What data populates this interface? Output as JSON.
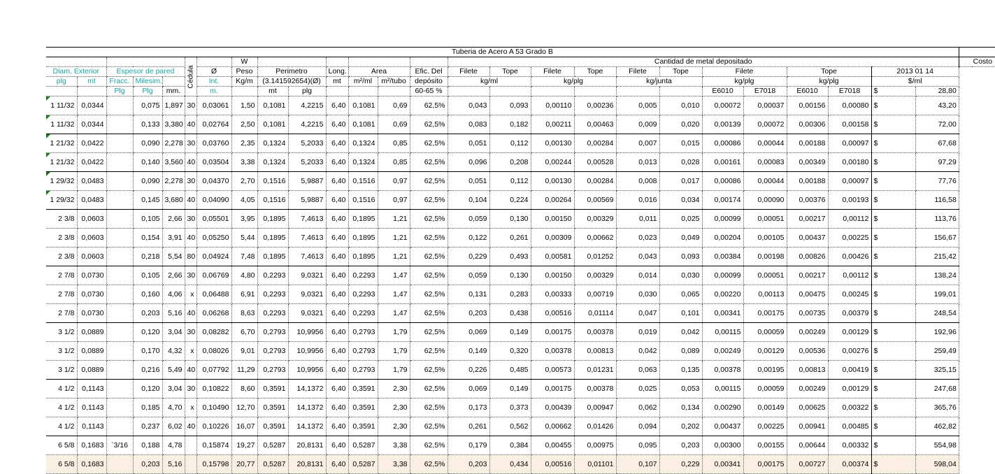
{
  "title": "Tuberia de Acero A 53 Grado B",
  "headers": {
    "row1": {
      "w": "W",
      "cantidad": "Cantidad de metal depositado",
      "costo": "Costo"
    },
    "row2": {
      "diam": "Diam. Exterior",
      "espesor": "Espesor de pared",
      "cedula": "Cédula",
      "diam_int": "Ø",
      "peso": "Peso",
      "perimetro": "Perimetro",
      "long": "Long.",
      "area": "Area",
      "efic": "Efic. Del",
      "filete1": "Filete",
      "tope1": "Tope",
      "filete2": "Filete",
      "tope2": "Tope",
      "filete3": "Filete",
      "tope3": "Tope",
      "filete4": "Filete",
      "tope4": "Tope",
      "fecha": "2013 01 14"
    },
    "row3": {
      "plg": "plg",
      "mt": "mt",
      "fracc": "Fracc.",
      "milesim": "Milesim.",
      "int": "Int.",
      "kgm": "Kg/m",
      "perim_formula": "(3.141592654)(Ø)",
      "long_unit": "mt",
      "area_m2ml": "m²/ml",
      "area_m2tubo": "m²/tubo",
      "deposito": "depósito",
      "kgml": "kg/ml",
      "kgplg1": "kg/plg",
      "kgjunta": "kg/junta",
      "kgplg2": "kg/plg",
      "kgplg3": "kg/plg",
      "sml": "$/ml"
    },
    "row4": {
      "plg": "Plg",
      "plg2": "Plg",
      "mm": "mm.",
      "m": "m.",
      "perim_mt": "mt",
      "perim_plg": "plg",
      "efic_range": "60-65 %",
      "e6010a": "E6010",
      "e7018a": "E7018",
      "e6010b": "E6010",
      "e7018b": "E7018",
      "cur": "$",
      "costo_base": "28,80"
    }
  },
  "rows": [
    {
      "plg": "1 11/32",
      "mt": "0,0344",
      "fracc": "",
      "milesim": "0,075",
      "mm": "1,897",
      "ced": "30",
      "dint": "0,03061",
      "peso": "1,50",
      "pmt": "0,1081",
      "pplg": "4,2215",
      "long": "6,40",
      "m2ml": "0,1081",
      "m2tubo": "0,69",
      "efic": "62,5%",
      "fil_kgml": "0,043",
      "top_kgml": "0,093",
      "fil_kgplg": "0,00110",
      "top_kgplg": "0,00236",
      "fil_junta": "0,005",
      "top_junta": "0,010",
      "f6010": "0,00072",
      "f7018": "0,00037",
      "t6010": "0,00156",
      "t7018": "0,00080",
      "cur": "$",
      "costo": "43,20"
    },
    {
      "plg": "1 11/32",
      "mt": "0,0344",
      "fracc": "",
      "milesim": "0,133",
      "mm": "3,380",
      "ced": "40",
      "dint": "0,02764",
      "peso": "2,50",
      "pmt": "0,1081",
      "pplg": "4,2215",
      "long": "6,40",
      "m2ml": "0,1081",
      "m2tubo": "0,69",
      "efic": "62,5%",
      "fil_kgml": "0,083",
      "top_kgml": "0,182",
      "fil_kgplg": "0,00211",
      "top_kgplg": "0,00463",
      "fil_junta": "0,009",
      "top_junta": "0,020",
      "f6010": "0,00139",
      "f7018": "0,00072",
      "t6010": "0,00306",
      "t7018": "0,00158",
      "cur": "$",
      "costo": "72,00"
    },
    {
      "plg": "1 21/32",
      "mt": "0,0422",
      "fracc": "",
      "milesim": "0,090",
      "mm": "2,278",
      "ced": "30",
      "dint": "0,03760",
      "peso": "2,35",
      "pmt": "0,1324",
      "pplg": "5,2033",
      "long": "6,40",
      "m2ml": "0,1324",
      "m2tubo": "0,85",
      "efic": "62,5%",
      "fil_kgml": "0,051",
      "top_kgml": "0,112",
      "fil_kgplg": "0,00130",
      "top_kgplg": "0,00284",
      "fil_junta": "0,007",
      "top_junta": "0,015",
      "f6010": "0,00086",
      "f7018": "0,00044",
      "t6010": "0,00188",
      "t7018": "0,00097",
      "cur": "$",
      "costo": "67,68"
    },
    {
      "plg": "1 21/32",
      "mt": "0,0422",
      "fracc": "",
      "milesim": "0,140",
      "mm": "3,560",
      "ced": "40",
      "dint": "0,03504",
      "peso": "3,38",
      "pmt": "0,1324",
      "pplg": "5,2033",
      "long": "6,40",
      "m2ml": "0,1324",
      "m2tubo": "0,85",
      "efic": "62,5%",
      "fil_kgml": "0,096",
      "top_kgml": "0,208",
      "fil_kgplg": "0,00244",
      "top_kgplg": "0,00528",
      "fil_junta": "0,013",
      "top_junta": "0,028",
      "f6010": "0,00161",
      "f7018": "0,00083",
      "t6010": "0,00349",
      "t7018": "0,00180",
      "cur": "$",
      "costo": "97,29"
    },
    {
      "plg": "1 29/32",
      "mt": "0,0483",
      "fracc": "",
      "milesim": "0,090",
      "mm": "2,278",
      "ced": "30",
      "dint": "0,04370",
      "peso": "2,70",
      "pmt": "0,1516",
      "pplg": "5,9887",
      "long": "6,40",
      "m2ml": "0,1516",
      "m2tubo": "0,97",
      "efic": "62,5%",
      "fil_kgml": "0,051",
      "top_kgml": "0,112",
      "fil_kgplg": "0,00130",
      "top_kgplg": "0,00284",
      "fil_junta": "0,008",
      "top_junta": "0,017",
      "f6010": "0,00086",
      "f7018": "0,00044",
      "t6010": "0,00188",
      "t7018": "0,00097",
      "cur": "$",
      "costo": "77,76"
    },
    {
      "plg": "1 29/32",
      "mt": "0,0483",
      "fracc": "",
      "milesim": "0,145",
      "mm": "3,680",
      "ced": "40",
      "dint": "0,04090",
      "peso": "4,05",
      "pmt": "0,1516",
      "pplg": "5,9887",
      "long": "6,40",
      "m2ml": "0,1516",
      "m2tubo": "0,97",
      "efic": "62,5%",
      "fil_kgml": "0,104",
      "top_kgml": "0,224",
      "fil_kgplg": "0,00264",
      "top_kgplg": "0,00569",
      "fil_junta": "0,016",
      "top_junta": "0,034",
      "f6010": "0,00174",
      "f7018": "0,00090",
      "t6010": "0,00376",
      "t7018": "0,00193",
      "cur": "$",
      "costo": "116,58"
    },
    {
      "plg": "2 3/8",
      "mt": "0,0603",
      "fracc": "",
      "milesim": "0,105",
      "mm": "2,66",
      "ced": "30",
      "dint": "0,05501",
      "peso": "3,95",
      "pmt": "0,1895",
      "pplg": "7,4613",
      "long": "6,40",
      "m2ml": "0,1895",
      "m2tubo": "1,21",
      "efic": "62,5%",
      "fil_kgml": "0,059",
      "top_kgml": "0,130",
      "fil_kgplg": "0,00150",
      "top_kgplg": "0,00329",
      "fil_junta": "0,011",
      "top_junta": "0,025",
      "f6010": "0,00099",
      "f7018": "0,00051",
      "t6010": "0,00217",
      "t7018": "0,00112",
      "cur": "$",
      "costo": "113,76"
    },
    {
      "plg": "2 3/8",
      "mt": "0,0603",
      "fracc": "",
      "milesim": "0,154",
      "mm": "3,91",
      "ced": "40",
      "dint": "0,05250",
      "peso": "5,44",
      "pmt": "0,1895",
      "pplg": "7,4613",
      "long": "6,40",
      "m2ml": "0,1895",
      "m2tubo": "1,21",
      "efic": "62,5%",
      "fil_kgml": "0,122",
      "top_kgml": "0,261",
      "fil_kgplg": "0,00309",
      "top_kgplg": "0,00662",
      "fil_junta": "0,023",
      "top_junta": "0,049",
      "f6010": "0,00204",
      "f7018": "0,00105",
      "t6010": "0,00437",
      "t7018": "0,00225",
      "cur": "$",
      "costo": "156,67"
    },
    {
      "plg": "2 3/8",
      "mt": "0,0603",
      "fracc": "",
      "milesim": "0,218",
      "mm": "5,54",
      "ced": "80",
      "dint": "0,04924",
      "peso": "7,48",
      "pmt": "0,1895",
      "pplg": "7,4613",
      "long": "6,40",
      "m2ml": "0,1895",
      "m2tubo": "1,21",
      "efic": "62,5%",
      "fil_kgml": "0,229",
      "top_kgml": "0,493",
      "fil_kgplg": "0,00581",
      "top_kgplg": "0,01252",
      "fil_junta": "0,043",
      "top_junta": "0,093",
      "f6010": "0,00384",
      "f7018": "0,00198",
      "t6010": "0,00826",
      "t7018": "0,00426",
      "cur": "$",
      "costo": "215,42"
    },
    {
      "plg": "2 7/8",
      "mt": "0,0730",
      "fracc": "",
      "milesim": "0,105",
      "mm": "2,66",
      "ced": "30",
      "dint": "0,06769",
      "peso": "4,80",
      "pmt": "0,2293",
      "pplg": "9,0321",
      "long": "6,40",
      "m2ml": "0,2293",
      "m2tubo": "1,47",
      "efic": "62,5%",
      "fil_kgml": "0,059",
      "top_kgml": "0,130",
      "fil_kgplg": "0,00150",
      "top_kgplg": "0,00329",
      "fil_junta": "0,014",
      "top_junta": "0,030",
      "f6010": "0,00099",
      "f7018": "0,00051",
      "t6010": "0,00217",
      "t7018": "0,00112",
      "cur": "$",
      "costo": "138,24"
    },
    {
      "plg": "2 7/8",
      "mt": "0,0730",
      "fracc": "",
      "milesim": "0,160",
      "mm": "4,06",
      "ced": "x",
      "dint": "0,06488",
      "peso": "6,91",
      "pmt": "0,2293",
      "pplg": "9,0321",
      "long": "6,40",
      "m2ml": "0,2293",
      "m2tubo": "1,47",
      "efic": "62,5%",
      "fil_kgml": "0,131",
      "top_kgml": "0,283",
      "fil_kgplg": "0,00333",
      "top_kgplg": "0,00719",
      "fil_junta": "0,030",
      "top_junta": "0,065",
      "f6010": "0,00220",
      "f7018": "0,00113",
      "t6010": "0,00475",
      "t7018": "0,00245",
      "cur": "$",
      "costo": "199,01"
    },
    {
      "plg": "2 7/8",
      "mt": "0,0730",
      "fracc": "",
      "milesim": "0,203",
      "mm": "5,16",
      "ced": "40",
      "dint": "0,06268",
      "peso": "8,63",
      "pmt": "0,2293",
      "pplg": "9,0321",
      "long": "6,40",
      "m2ml": "0,2293",
      "m2tubo": "1,47",
      "efic": "62,5%",
      "fil_kgml": "0,203",
      "top_kgml": "0,438",
      "fil_kgplg": "0,00516",
      "top_kgplg": "0,01114",
      "fil_junta": "0,047",
      "top_junta": "0,101",
      "f6010": "0,00341",
      "f7018": "0,00175",
      "t6010": "0,00735",
      "t7018": "0,00379",
      "cur": "$",
      "costo": "248,54"
    },
    {
      "plg": "3 1/2",
      "mt": "0,0889",
      "fracc": "",
      "milesim": "0,120",
      "mm": "3,04",
      "ced": "30",
      "dint": "0,08282",
      "peso": "6,70",
      "pmt": "0,2793",
      "pplg": "10,9956",
      "long": "6,40",
      "m2ml": "0,2793",
      "m2tubo": "1,79",
      "efic": "62,5%",
      "fil_kgml": "0,069",
      "top_kgml": "0,149",
      "fil_kgplg": "0,00175",
      "top_kgplg": "0,00378",
      "fil_junta": "0,019",
      "top_junta": "0,042",
      "f6010": "0,00115",
      "f7018": "0,00059",
      "t6010": "0,00249",
      "t7018": "0,00129",
      "cur": "$",
      "costo": "192,96"
    },
    {
      "plg": "3 1/2",
      "mt": "0,0889",
      "fracc": "",
      "milesim": "0,170",
      "mm": "4,32",
      "ced": "x",
      "dint": "0,08026",
      "peso": "9,01",
      "pmt": "0,2793",
      "pplg": "10,9956",
      "long": "6,40",
      "m2ml": "0,2793",
      "m2tubo": "1,79",
      "efic": "62,5%",
      "fil_kgml": "0,149",
      "top_kgml": "0,320",
      "fil_kgplg": "0,00378",
      "top_kgplg": "0,00813",
      "fil_junta": "0,042",
      "top_junta": "0,089",
      "f6010": "0,00249",
      "f7018": "0,00129",
      "t6010": "0,00536",
      "t7018": "0,00276",
      "cur": "$",
      "costo": "259,49"
    },
    {
      "plg": "3 1/2",
      "mt": "0,0889",
      "fracc": "",
      "milesim": "0,216",
      "mm": "5,49",
      "ced": "40",
      "dint": "0,07792",
      "peso": "11,29",
      "pmt": "0,2793",
      "pplg": "10,9956",
      "long": "6,40",
      "m2ml": "0,2793",
      "m2tubo": "1,79",
      "efic": "62,5%",
      "fil_kgml": "0,226",
      "top_kgml": "0,485",
      "fil_kgplg": "0,00573",
      "top_kgplg": "0,01231",
      "fil_junta": "0,063",
      "top_junta": "0,135",
      "f6010": "0,00378",
      "f7018": "0,00195",
      "t6010": "0,00813",
      "t7018": "0,00419",
      "cur": "$",
      "costo": "325,15"
    },
    {
      "plg": "4 1/2",
      "mt": "0,1143",
      "fracc": "",
      "milesim": "0,120",
      "mm": "3,04",
      "ced": "30",
      "dint": "0,10822",
      "peso": "8,60",
      "pmt": "0,3591",
      "pplg": "14,1372",
      "long": "6,40",
      "m2ml": "0,3591",
      "m2tubo": "2,30",
      "efic": "62,5%",
      "fil_kgml": "0,069",
      "top_kgml": "0,149",
      "fil_kgplg": "0,00175",
      "top_kgplg": "0,00378",
      "fil_junta": "0,025",
      "top_junta": "0,053",
      "f6010": "0,00115",
      "f7018": "0,00059",
      "t6010": "0,00249",
      "t7018": "0,00129",
      "cur": "$",
      "costo": "247,68"
    },
    {
      "plg": "4 1/2",
      "mt": "0,1143",
      "fracc": "",
      "milesim": "0,185",
      "mm": "4,70",
      "ced": "x",
      "dint": "0,10490",
      "peso": "12,70",
      "pmt": "0,3591",
      "pplg": "14,1372",
      "long": "6,40",
      "m2ml": "0,3591",
      "m2tubo": "2,30",
      "efic": "62,5%",
      "fil_kgml": "0,173",
      "top_kgml": "0,373",
      "fil_kgplg": "0,00439",
      "top_kgplg": "0,00947",
      "fil_junta": "0,062",
      "top_junta": "0,134",
      "f6010": "0,00290",
      "f7018": "0,00149",
      "t6010": "0,00625",
      "t7018": "0,00322",
      "cur": "$",
      "costo": "365,76"
    },
    {
      "plg": "4 1/2",
      "mt": "0,1143",
      "fracc": "",
      "milesim": "0,237",
      "mm": "6,02",
      "ced": "40",
      "dint": "0,10226",
      "peso": "16,07",
      "pmt": "0,3591",
      "pplg": "14,1372",
      "long": "6,40",
      "m2ml": "0,3591",
      "m2tubo": "2,30",
      "efic": "62,5%",
      "fil_kgml": "0,261",
      "top_kgml": "0,562",
      "fil_kgplg": "0,00662",
      "top_kgplg": "0,01426",
      "fil_junta": "0,094",
      "top_junta": "0,202",
      "f6010": "0,00437",
      "f7018": "0,00225",
      "t6010": "0,00941",
      "t7018": "0,00485",
      "cur": "$",
      "costo": "462,82"
    },
    {
      "plg": "6 5/8",
      "mt": "0,1683",
      "fracc": "`3/16",
      "milesim": "0,188",
      "mm": "4,78",
      "ced": "",
      "dint": "0,15874",
      "peso": "19,27",
      "pmt": "0,5287",
      "pplg": "20,8131",
      "long": "6,40",
      "m2ml": "0,5287",
      "m2tubo": "3,38",
      "efic": "62,5%",
      "fil_kgml": "0,179",
      "top_kgml": "0,384",
      "fil_kgplg": "0,00455",
      "top_kgplg": "0,00975",
      "fil_junta": "0,095",
      "top_junta": "0,203",
      "f6010": "0,00300",
      "f7018": "0,00155",
      "t6010": "0,00644",
      "t7018": "0,00332",
      "cur": "$",
      "costo": "554,98"
    },
    {
      "plg": "6 5/8",
      "mt": "0,1683",
      "fracc": "",
      "milesim": "0,203",
      "mm": "5,16",
      "ced": "",
      "dint": "0,15798",
      "peso": "20,77",
      "pmt": "0,5287",
      "pplg": "20,8131",
      "long": "6,40",
      "m2ml": "0,5287",
      "m2tubo": "3,38",
      "efic": "62,5%",
      "fil_kgml": "0,203",
      "top_kgml": "0,434",
      "fil_kgplg": "0,00516",
      "top_kgplg": "0,01101",
      "fil_junta": "0,107",
      "top_junta": "0,229",
      "f6010": "0,00341",
      "f7018": "0,00175",
      "t6010": "0,00727",
      "t7018": "0,00374",
      "cur": "$",
      "costo": "598,04"
    }
  ]
}
